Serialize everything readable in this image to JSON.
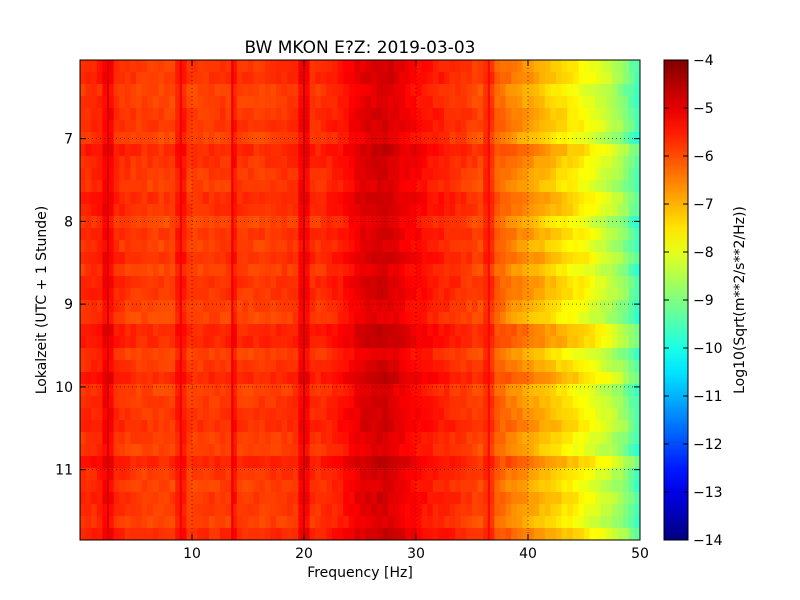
{
  "chart_data": {
    "type": "heatmap",
    "title": "BW MKON E?Z: 2019-03-03",
    "xlabel": "Frequency [Hz]",
    "ylabel": "Lokalzeit (UTC + 1 Stunde)",
    "xlim": [
      0,
      50
    ],
    "ylim": [
      6.05,
      11.85
    ],
    "y_inverted": true,
    "x_ticks": [
      10,
      20,
      30,
      40,
      50
    ],
    "x_tick_labels": [
      "10",
      "20",
      "30",
      "40",
      "50"
    ],
    "y_ticks": [
      7,
      8,
      9,
      10,
      11
    ],
    "y_tick_labels": [
      "7",
      "8",
      "9",
      "10",
      "11"
    ],
    "grid": true,
    "colormap": "jet",
    "colorbar": {
      "label": "Log10(Sqrt(m**2/s**2/Hz))",
      "range": [
        -14,
        -4
      ],
      "ticks": [
        -4,
        -5,
        -6,
        -7,
        -8,
        -9,
        -10,
        -11,
        -12,
        -13,
        -14
      ],
      "tick_labels": [
        "−4",
        "−5",
        "−6",
        "−7",
        "−8",
        "−9",
        "−10",
        "−11",
        "−12",
        "−13",
        "−14"
      ]
    },
    "frequency_profile": {
      "x": [
        0,
        2,
        5,
        8,
        10,
        13,
        16,
        19,
        20,
        21,
        23,
        25,
        26,
        27,
        28,
        29,
        31,
        33,
        35,
        36.5,
        38,
        39.5,
        41,
        42.5,
        44,
        45.5,
        47,
        48.5,
        50
      ],
      "values": [
        -5.7,
        -5.5,
        -5.8,
        -5.85,
        -5.8,
        -5.75,
        -5.8,
        -5.7,
        -5.5,
        -5.7,
        -5.5,
        -5.0,
        -4.9,
        -4.8,
        -4.9,
        -5.1,
        -5.4,
        -5.6,
        -5.8,
        -6.0,
        -6.3,
        -6.6,
        -6.9,
        -7.2,
        -7.5,
        -7.8,
        -8.2,
        -8.7,
        -9.6
      ]
    },
    "vertical_lines_hz": [
      2.5,
      9,
      13.6,
      20,
      36.5
    ]
  }
}
